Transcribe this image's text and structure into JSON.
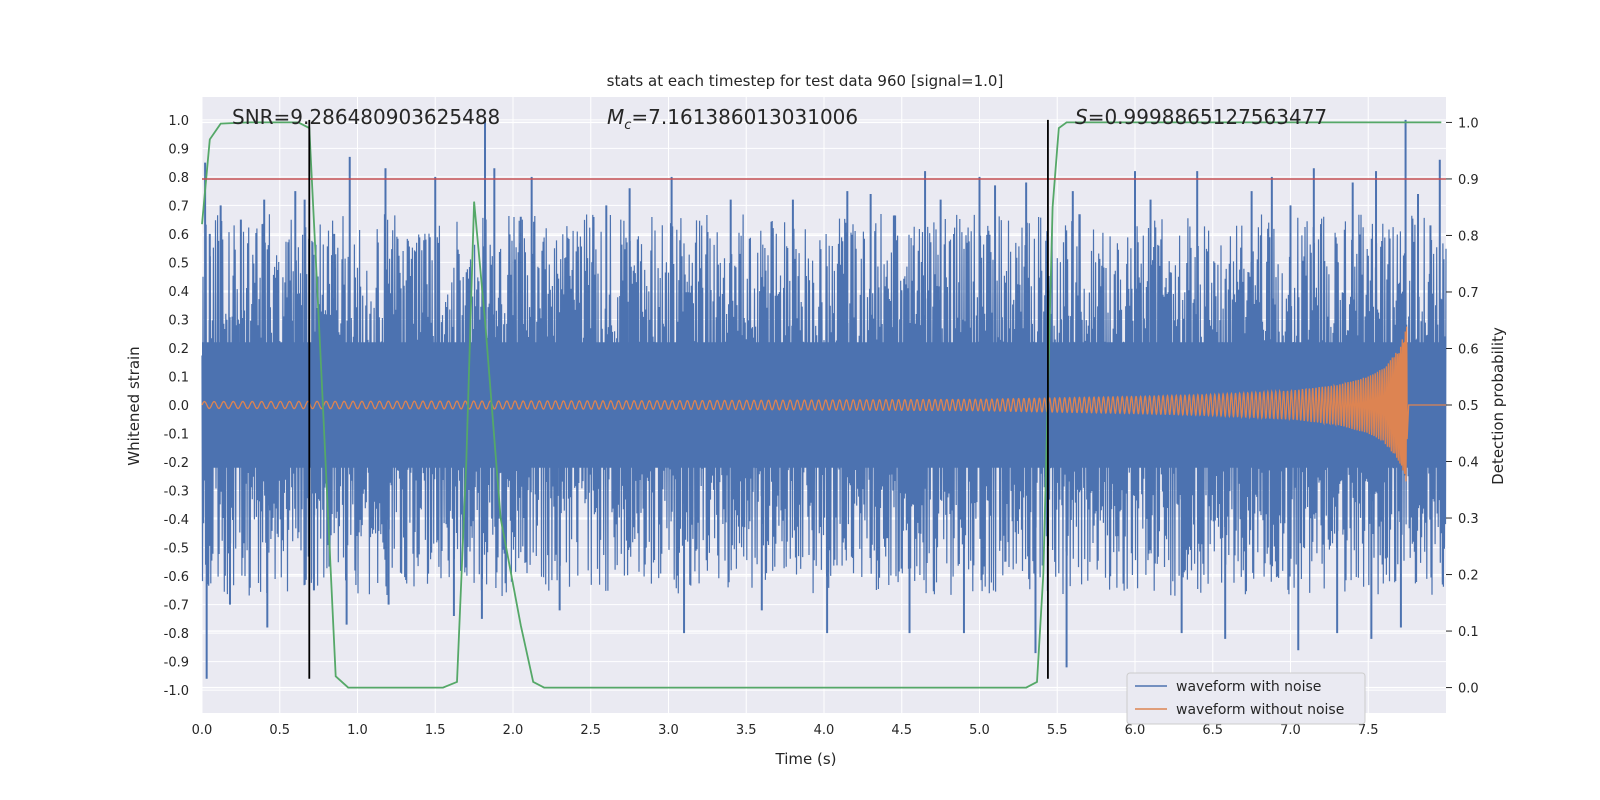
{
  "chart_data": {
    "type": "line",
    "title": "stats at each timestep for test data 960 [signal=1.0]",
    "xlabel": "Time (s)",
    "ylabel": "Whitened strain",
    "ylabel_right": "Detection probability",
    "xlim": [
      0.0,
      8.0
    ],
    "ylim": [
      -1.08,
      1.08
    ],
    "ylim_right": [
      -0.045,
      1.045
    ],
    "x_ticks": [
      "0.0",
      "0.5",
      "1.0",
      "1.5",
      "2.0",
      "2.5",
      "3.0",
      "3.5",
      "4.0",
      "4.5",
      "5.0",
      "5.5",
      "6.0",
      "6.5",
      "7.0",
      "7.5"
    ],
    "y_ticks": [
      "1.0",
      "0.9",
      "0.8",
      "0.7",
      "0.6",
      "0.5",
      "0.4",
      "0.3",
      "0.2",
      "0.1",
      "0.0",
      "-0.1",
      "-0.2",
      "-0.3",
      "-0.4",
      "-0.5",
      "-0.6",
      "-0.7",
      "-0.8",
      "-0.9",
      "-1.0"
    ],
    "y_ticks_right": [
      "1.0",
      "0.9",
      "0.8",
      "0.7",
      "0.6",
      "0.5",
      "0.4",
      "0.3",
      "0.2",
      "0.1",
      "0.0"
    ],
    "annotations": {
      "snr": "SNR=9.286480903625488",
      "mc_symbol": "M",
      "mc_sub": "c",
      "mc_value": "=7.161386013031006",
      "s_symbol": "S",
      "s_value": "=0.9998865127563477"
    },
    "threshold": {
      "axis": "right",
      "value": 0.9,
      "color": "#c44e52"
    },
    "vertical_markers": {
      "x": [
        0.69,
        5.44
      ],
      "y_range": [
        -0.96,
        1.0
      ],
      "color": "#000000"
    },
    "legend": {
      "placement": "lower-right",
      "entries": [
        "waveform with noise",
        "waveform without noise"
      ]
    },
    "grid": true,
    "series": [
      {
        "name": "waveform with noise",
        "axis": "left",
        "color": "#4c72b0",
        "kind": "noise",
        "x_range": [
          0.0,
          8.0
        ],
        "typical_envelope": [
          -0.55,
          0.55
        ],
        "spikes": [
          [
            0.02,
            0.85
          ],
          [
            0.03,
            -0.96
          ],
          [
            0.05,
            0.6
          ],
          [
            0.12,
            0.7
          ],
          [
            0.18,
            -0.7
          ],
          [
            0.25,
            0.65
          ],
          [
            0.4,
            0.72
          ],
          [
            0.42,
            -0.78
          ],
          [
            0.6,
            0.75
          ],
          [
            0.66,
            0.72
          ],
          [
            0.72,
            -0.65
          ],
          [
            0.85,
            0.6
          ],
          [
            0.95,
            0.87
          ],
          [
            0.93,
            -0.77
          ],
          [
            1.18,
            0.83
          ],
          [
            1.2,
            -0.7
          ],
          [
            1.5,
            0.8
          ],
          [
            1.62,
            -0.74
          ],
          [
            1.82,
            1.0
          ],
          [
            1.88,
            0.83
          ],
          [
            1.8,
            -0.75
          ],
          [
            2.05,
            0.66
          ],
          [
            2.12,
            0.8
          ],
          [
            2.3,
            -0.72
          ],
          [
            2.6,
            0.7
          ],
          [
            2.75,
            0.76
          ],
          [
            3.02,
            0.8
          ],
          [
            3.1,
            -0.8
          ],
          [
            3.4,
            0.72
          ],
          [
            3.6,
            -0.72
          ],
          [
            3.8,
            0.72
          ],
          [
            4.02,
            -0.8
          ],
          [
            4.15,
            0.75
          ],
          [
            4.3,
            0.74
          ],
          [
            4.55,
            -0.8
          ],
          [
            4.65,
            0.82
          ],
          [
            4.75,
            0.72
          ],
          [
            4.9,
            -0.8
          ],
          [
            5.0,
            0.8
          ],
          [
            5.1,
            0.77
          ],
          [
            5.3,
            0.78
          ],
          [
            5.36,
            -0.87
          ],
          [
            5.56,
            -0.92
          ],
          [
            5.6,
            0.75
          ],
          [
            6.0,
            0.82
          ],
          [
            6.1,
            0.72
          ],
          [
            6.3,
            -0.8
          ],
          [
            6.4,
            0.82
          ],
          [
            6.58,
            -0.82
          ],
          [
            6.75,
            0.75
          ],
          [
            6.88,
            0.8
          ],
          [
            7.0,
            0.7
          ],
          [
            7.05,
            -0.86
          ],
          [
            7.15,
            0.83
          ],
          [
            7.3,
            -0.8
          ],
          [
            7.4,
            0.78
          ],
          [
            7.55,
            0.82
          ],
          [
            7.52,
            -0.82
          ],
          [
            7.74,
            1.0
          ],
          [
            7.71,
            -0.78
          ],
          [
            7.82,
            0.74
          ],
          [
            7.9,
            0.63
          ],
          [
            7.96,
            0.86
          ],
          [
            7.98,
            -0.62
          ]
        ]
      },
      {
        "name": "waveform without noise",
        "axis": "left",
        "color": "#dd8452",
        "kind": "chirp",
        "merger_time": 7.75,
        "envelope": {
          "x": [
            0.0,
            3.0,
            5.0,
            6.0,
            6.5,
            7.0,
            7.3,
            7.5,
            7.6,
            7.7,
            7.75
          ],
          "y": [
            0.012,
            0.015,
            0.02,
            0.03,
            0.037,
            0.05,
            0.07,
            0.1,
            0.13,
            0.2,
            0.28
          ]
        },
        "frequency_hz": {
          "x": [
            0.0,
            4.0,
            7.0,
            7.6,
            7.75
          ],
          "y": [
            16.0,
            22.0,
            40.0,
            70.0,
            110.0
          ]
        }
      },
      {
        "name": "",
        "axis": "right",
        "color": "#55a868",
        "kind": "line",
        "x": [
          0.0,
          0.05,
          0.12,
          0.3,
          0.5,
          0.62,
          0.69,
          0.76,
          0.86,
          0.94,
          1.1,
          1.3,
          1.55,
          1.64,
          1.7,
          1.75,
          1.82,
          1.92,
          2.05,
          2.13,
          2.2,
          3.0,
          4.0,
          5.0,
          5.3,
          5.37,
          5.41,
          5.44,
          5.47,
          5.51,
          5.56,
          5.65,
          6.0,
          7.0,
          7.97
        ],
        "y": [
          0.82,
          0.97,
          0.998,
          1.0,
          1.0,
          1.0,
          0.99,
          0.6,
          0.02,
          0.0,
          0.0,
          0.0,
          0.0,
          0.01,
          0.4,
          0.86,
          0.65,
          0.3,
          0.11,
          0.01,
          0.0,
          0.0,
          0.0,
          0.0,
          0.0,
          0.01,
          0.2,
          0.52,
          0.85,
          0.99,
          1.0,
          1.0,
          1.0,
          1.0,
          1.0
        ]
      }
    ]
  }
}
